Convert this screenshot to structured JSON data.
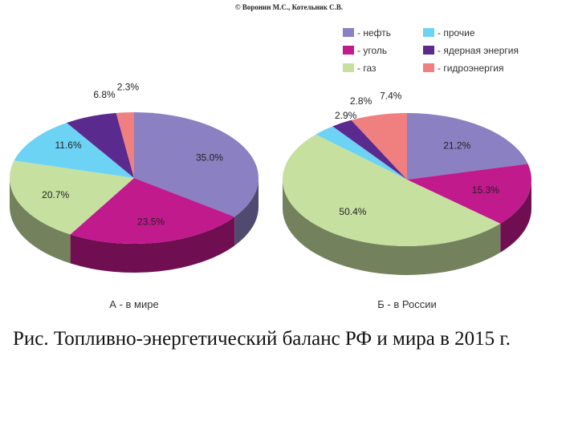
{
  "header": {
    "copyright": "© Воронин М.С., Котельник С.В."
  },
  "legend": [
    {
      "key": "oil",
      "label": "- нефть",
      "color": "#8a80c2"
    },
    {
      "key": "other",
      "label": "- прочие",
      "color": "#6dd3f5"
    },
    {
      "key": "coal",
      "label": "- уголь",
      "color": "#c01a8c"
    },
    {
      "key": "nuc",
      "label": "- ядерная энергия",
      "color": "#5a2a8e"
    },
    {
      "key": "gas",
      "label": "- газ",
      "color": "#c6e0a0"
    },
    {
      "key": "hydro",
      "label": "- гидроэнергия",
      "color": "#f08080"
    }
  ],
  "chart_data": [
    {
      "type": "pie",
      "title": "А - в мире",
      "slices": [
        {
          "key": "oil",
          "value": 35.0,
          "label": "35.0%"
        },
        {
          "key": "coal",
          "value": 23.5,
          "label": "23.5%"
        },
        {
          "key": "gas",
          "value": 20.7,
          "label": "20.7%"
        },
        {
          "key": "other",
          "value": 11.6,
          "label": "11.6%"
        },
        {
          "key": "nuc",
          "value": 6.8,
          "label": "6.8%"
        },
        {
          "key": "hydro",
          "value": 2.3,
          "label": "2.3%"
        }
      ]
    },
    {
      "type": "pie",
      "title": "Б - в России",
      "slices": [
        {
          "key": "oil",
          "value": 21.2,
          "label": "21.2%"
        },
        {
          "key": "coal",
          "value": 15.3,
          "label": "15.3%"
        },
        {
          "key": "gas",
          "value": 50.4,
          "label": "50.4%"
        },
        {
          "key": "other",
          "value": 2.9,
          "label": "2.9%"
        },
        {
          "key": "nuc",
          "value": 2.8,
          "label": "2.8%"
        },
        {
          "key": "hydro",
          "value": 7.4,
          "label": "7.4%"
        }
      ]
    }
  ],
  "caption": "Рис. Топливно-энергетический баланс РФ и мира в 2015 г."
}
